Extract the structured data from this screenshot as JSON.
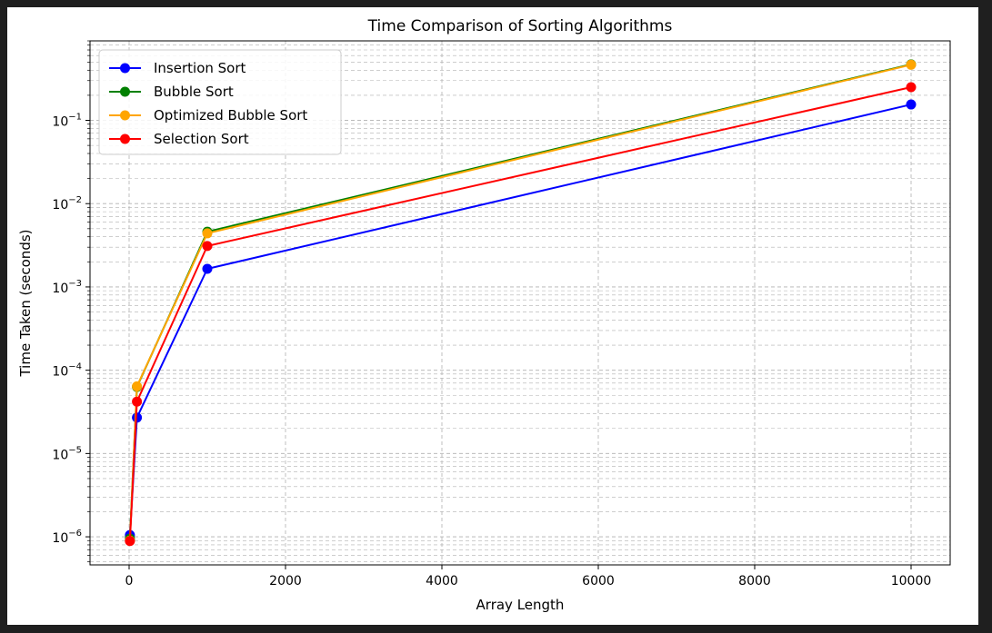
{
  "chart_data": {
    "type": "line",
    "title": "Time Comparison of Sorting Algorithms",
    "xlabel": "Array Length",
    "ylabel": "Time Taken (seconds)",
    "x": [
      10,
      100,
      1000,
      10000
    ],
    "xlim": [
      -500,
      10500
    ],
    "xticks": [
      0,
      2000,
      4000,
      6000,
      8000,
      10000
    ],
    "ylim": [
      4.6e-07,
      0.9
    ],
    "yscale": "log",
    "yticks": [
      {
        "exp": -6,
        "label": "10",
        "sup": "−6"
      },
      {
        "exp": -5,
        "label": "10",
        "sup": "−5"
      },
      {
        "exp": -4,
        "label": "10",
        "sup": "−4"
      },
      {
        "exp": -3,
        "label": "10",
        "sup": "−3"
      },
      {
        "exp": -2,
        "label": "10",
        "sup": "−2"
      },
      {
        "exp": -1,
        "label": "10",
        "sup": "−1"
      }
    ],
    "grid": true,
    "legend_position": "top-left",
    "series": [
      {
        "name": "Insertion Sort",
        "color": "#0000ff",
        "values": [
          1.05e-06,
          2.7e-05,
          0.00165,
          0.155
        ]
      },
      {
        "name": "Bubble Sort",
        "color": "#008000",
        "values": [
          9.5e-07,
          6.3e-05,
          0.0046,
          0.47
        ]
      },
      {
        "name": "Optimized Bubble Sort",
        "color": "#ffa500",
        "values": [
          9e-07,
          6.4e-05,
          0.0044,
          0.465
        ]
      },
      {
        "name": "Selection Sort",
        "color": "#ff0000",
        "values": [
          8.9e-07,
          4.2e-05,
          0.0031,
          0.25
        ]
      }
    ]
  }
}
